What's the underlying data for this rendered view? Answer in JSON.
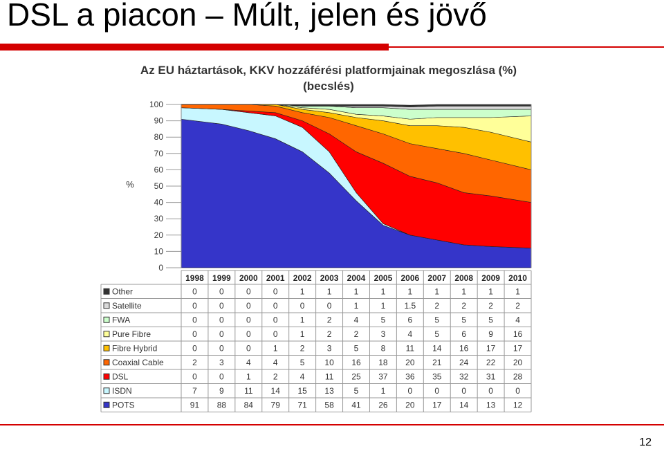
{
  "slide": {
    "title": "DSL a piacon – Múlt, jelen és jövő",
    "page_number": "12"
  },
  "chart_data": {
    "type": "area",
    "stacked": true,
    "title_line1": "Az EU háztartások, KKV hozzáférési platformjainak megoszlása (%)",
    "title_line2": "(becslés)",
    "ylabel": "%",
    "ylim": [
      0,
      100
    ],
    "yticks": [
      0,
      10,
      20,
      30,
      40,
      50,
      60,
      70,
      80,
      90,
      100
    ],
    "categories": [
      "1998",
      "1999",
      "2000",
      "2001",
      "2002",
      "2003",
      "2004",
      "2005",
      "2006",
      "2007",
      "2008",
      "2009",
      "2010"
    ],
    "series": [
      {
        "name": "POTS",
        "color": "#3535c9",
        "values": [
          "91",
          "88",
          "84",
          "79",
          "71",
          "58",
          "41",
          "26",
          "20",
          "17",
          "14",
          "13",
          "12"
        ]
      },
      {
        "name": "ISDN",
        "color": "#c8f7ff",
        "values": [
          "7",
          "9",
          "11",
          "14",
          "15",
          "13",
          "5",
          "1",
          "0",
          "0",
          "0",
          "0",
          "0"
        ]
      },
      {
        "name": "DSL",
        "color": "#ff0000",
        "values": [
          "0",
          "0",
          "1",
          "2",
          "4",
          "11",
          "25",
          "37",
          "36",
          "35",
          "32",
          "31",
          "28"
        ]
      },
      {
        "name": "Coaxial Cable",
        "color": "#ff6600",
        "values": [
          "2",
          "3",
          "4",
          "4",
          "5",
          "10",
          "16",
          "18",
          "20",
          "21",
          "24",
          "22",
          "20"
        ]
      },
      {
        "name": "Fibre Hybrid",
        "color": "#ffc000",
        "values": [
          "0",
          "0",
          "0",
          "1",
          "2",
          "3",
          "5",
          "8",
          "11",
          "14",
          "16",
          "17",
          "17"
        ]
      },
      {
        "name": "Pure Fibre",
        "color": "#ffff99",
        "values": [
          "0",
          "0",
          "0",
          "0",
          "1",
          "2",
          "2",
          "3",
          "4",
          "5",
          "6",
          "9",
          "16"
        ]
      },
      {
        "name": "FWA",
        "color": "#ccffcc",
        "values": [
          "0",
          "0",
          "0",
          "0",
          "1",
          "2",
          "4",
          "5",
          "6",
          "5",
          "5",
          "5",
          "4"
        ]
      },
      {
        "name": "Satellite",
        "color": "#d9d9d9",
        "values": [
          "0",
          "0",
          "0",
          "0",
          "0",
          "0",
          "1",
          "1",
          "1.5",
          "2",
          "2",
          "2",
          "2"
        ]
      },
      {
        "name": "Other",
        "color": "#333333",
        "values": [
          "0",
          "0",
          "0",
          "0",
          "1",
          "1",
          "1",
          "1",
          "1",
          "1",
          "1",
          "1",
          "1"
        ]
      }
    ],
    "table_row_order": [
      "Other",
      "Satellite",
      "FWA",
      "Pure Fibre",
      "Fibre Hybrid",
      "Coaxial Cable",
      "DSL",
      "ISDN",
      "POTS"
    ],
    "grid": true,
    "legend": "table-below"
  }
}
